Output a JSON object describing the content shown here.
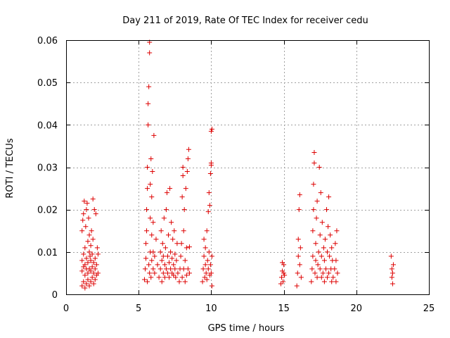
{
  "chart_data": {
    "type": "scatter",
    "title": "Day 211 of 2019, Rate Of TEC Index for receiver cedu",
    "xlabel": "GPS time / hours",
    "ylabel": "ROTI / TECUs",
    "xlim": [
      0,
      25
    ],
    "ylim": [
      0,
      0.06
    ],
    "xticks": [
      0,
      5,
      10,
      15,
      20,
      25
    ],
    "xtick_labels": [
      "0",
      "5",
      "10",
      "15",
      "20",
      "25"
    ],
    "yticks": [
      0,
      0.01,
      0.02,
      0.03,
      0.04,
      0.05,
      0.06
    ],
    "ytick_labels": [
      "0",
      "0.01",
      "0.02",
      "0.03",
      "0.04",
      "0.05",
      "0.06"
    ],
    "grid": true,
    "marker": "+",
    "color": "#dd0000",
    "series": [
      {
        "name": "ROTI",
        "points": [
          [
            1.1,
            0.002
          ],
          [
            1.1,
            0.0055
          ],
          [
            1.1,
            0.008
          ],
          [
            1.1,
            0.015
          ],
          [
            1.15,
            0.0175
          ],
          [
            1.2,
            0.003
          ],
          [
            1.2,
            0.0065
          ],
          [
            1.2,
            0.0095
          ],
          [
            1.2,
            0.019
          ],
          [
            1.25,
            0.022
          ],
          [
            1.3,
            0.0015
          ],
          [
            1.3,
            0.0045
          ],
          [
            1.3,
            0.007
          ],
          [
            1.3,
            0.011
          ],
          [
            1.35,
            0.016
          ],
          [
            1.4,
            0.0025
          ],
          [
            1.4,
            0.006
          ],
          [
            1.4,
            0.0085
          ],
          [
            1.4,
            0.02
          ],
          [
            1.45,
            0.0215
          ],
          [
            1.5,
            0.0035
          ],
          [
            1.5,
            0.005
          ],
          [
            1.5,
            0.0075
          ],
          [
            1.5,
            0.0125
          ],
          [
            1.55,
            0.018
          ],
          [
            1.6,
            0.002
          ],
          [
            1.6,
            0.006
          ],
          [
            1.6,
            0.01
          ],
          [
            1.6,
            0.014
          ],
          [
            1.65,
            0.009
          ],
          [
            1.7,
            0.003
          ],
          [
            1.7,
            0.0055
          ],
          [
            1.7,
            0.008
          ],
          [
            1.7,
            0.0115
          ],
          [
            1.75,
            0.015
          ],
          [
            1.8,
            0.004
          ],
          [
            1.8,
            0.0065
          ],
          [
            1.8,
            0.0095
          ],
          [
            1.85,
            0.013
          ],
          [
            1.9,
            0.0025
          ],
          [
            1.9,
            0.005
          ],
          [
            1.9,
            0.0075
          ],
          [
            1.95,
            0.02
          ],
          [
            2.0,
            0.0035
          ],
          [
            2.0,
            0.006
          ],
          [
            2.0,
            0.0085
          ],
          [
            2.05,
            0.019
          ],
          [
            2.1,
            0.0045
          ],
          [
            2.1,
            0.007
          ],
          [
            2.15,
            0.011
          ],
          [
            1.85,
            0.0225
          ],
          [
            2.2,
            0.0095
          ],
          [
            2.2,
            0.005
          ],
          [
            5.4,
            0.0035
          ],
          [
            5.45,
            0.006
          ],
          [
            5.5,
            0.0085
          ],
          [
            5.5,
            0.012
          ],
          [
            5.55,
            0.015
          ],
          [
            5.55,
            0.02
          ],
          [
            5.6,
            0.025
          ],
          [
            5.6,
            0.03
          ],
          [
            5.6,
            0.003
          ],
          [
            5.65,
            0.04
          ],
          [
            5.65,
            0.045
          ],
          [
            5.7,
            0.049
          ],
          [
            5.7,
            0.007
          ],
          [
            5.75,
            0.057
          ],
          [
            5.75,
            0.0595
          ],
          [
            5.75,
            0.005
          ],
          [
            5.8,
            0.01
          ],
          [
            5.8,
            0.018
          ],
          [
            5.8,
            0.026
          ],
          [
            5.85,
            0.032
          ],
          [
            5.85,
            0.004
          ],
          [
            5.9,
            0.008
          ],
          [
            5.9,
            0.014
          ],
          [
            5.9,
            0.023
          ],
          [
            5.95,
            0.029
          ],
          [
            6.0,
            0.006
          ],
          [
            6.0,
            0.01
          ],
          [
            6.0,
            0.017
          ],
          [
            6.05,
            0.0375
          ],
          [
            6.1,
            0.005
          ],
          [
            6.1,
            0.009
          ],
          [
            6.2,
            0.013
          ],
          [
            6.3,
            0.007
          ],
          [
            6.4,
            0.004
          ],
          [
            6.5,
            0.006
          ],
          [
            6.5,
            0.01
          ],
          [
            6.55,
            0.015
          ],
          [
            6.6,
            0.003
          ],
          [
            6.6,
            0.008
          ],
          [
            6.65,
            0.012
          ],
          [
            6.7,
            0.005
          ],
          [
            6.7,
            0.009
          ],
          [
            6.75,
            0.018
          ],
          [
            6.8,
            0.004
          ],
          [
            6.8,
            0.007
          ],
          [
            6.85,
            0.011
          ],
          [
            6.9,
            0.006
          ],
          [
            6.9,
            0.02
          ],
          [
            6.95,
            0.024
          ],
          [
            7.0,
            0.005
          ],
          [
            7.0,
            0.009
          ],
          [
            7.05,
            0.014
          ],
          [
            7.1,
            0.004
          ],
          [
            7.1,
            0.0075
          ],
          [
            7.15,
            0.025
          ],
          [
            7.2,
            0.006
          ],
          [
            7.2,
            0.01
          ],
          [
            7.25,
            0.017
          ],
          [
            7.3,
            0.005
          ],
          [
            7.3,
            0.0085
          ],
          [
            7.35,
            0.013
          ],
          [
            7.4,
            0.0045
          ],
          [
            7.4,
            0.007
          ],
          [
            7.45,
            0.015
          ],
          [
            7.5,
            0.006
          ],
          [
            7.5,
            0.0095
          ],
          [
            7.55,
            0.004
          ],
          [
            7.6,
            0.008
          ],
          [
            7.65,
            0.012
          ],
          [
            7.7,
            0.005
          ],
          [
            7.8,
            0.003
          ],
          [
            7.85,
            0.006
          ],
          [
            7.9,
            0.009
          ],
          [
            7.95,
            0.012
          ],
          [
            8.0,
            0.004
          ],
          [
            8.0,
            0.023
          ],
          [
            8.05,
            0.028
          ],
          [
            8.05,
            0.03
          ],
          [
            8.1,
            0.006
          ],
          [
            8.1,
            0.015
          ],
          [
            8.15,
            0.02
          ],
          [
            8.2,
            0.003
          ],
          [
            8.2,
            0.008
          ],
          [
            8.25,
            0.025
          ],
          [
            8.3,
            0.0045
          ],
          [
            8.3,
            0.011
          ],
          [
            8.35,
            0.029
          ],
          [
            8.4,
            0.006
          ],
          [
            8.4,
            0.032
          ],
          [
            8.45,
            0.0342
          ],
          [
            8.5,
            0.005
          ],
          [
            8.5,
            0.0112
          ],
          [
            9.4,
            0.003
          ],
          [
            9.45,
            0.006
          ],
          [
            9.5,
            0.009
          ],
          [
            9.5,
            0.013
          ],
          [
            9.55,
            0.004
          ],
          [
            9.6,
            0.007
          ],
          [
            9.6,
            0.011
          ],
          [
            9.65,
            0.005
          ],
          [
            9.7,
            0.015
          ],
          [
            9.7,
            0.0035
          ],
          [
            9.75,
            0.008
          ],
          [
            9.8,
            0.0195
          ],
          [
            9.8,
            0.006
          ],
          [
            9.85,
            0.01
          ],
          [
            9.85,
            0.024
          ],
          [
            9.9,
            0.0045
          ],
          [
            9.9,
            0.021
          ],
          [
            9.95,
            0.007
          ],
          [
            9.95,
            0.0285
          ],
          [
            10.0,
            0.005
          ],
          [
            10.0,
            0.0305
          ],
          [
            10.0,
            0.031
          ],
          [
            10.0,
            0.0385
          ],
          [
            10.05,
            0.039
          ],
          [
            10.05,
            0.009
          ],
          [
            10.05,
            0.002
          ],
          [
            14.8,
            0.0025
          ],
          [
            14.85,
            0.004
          ],
          [
            14.9,
            0.0055
          ],
          [
            14.9,
            0.0075
          ],
          [
            14.95,
            0.003
          ],
          [
            15.0,
            0.005
          ],
          [
            15.0,
            0.007
          ],
          [
            15.05,
            0.0045
          ],
          [
            15.9,
            0.002
          ],
          [
            15.95,
            0.005
          ],
          [
            16.0,
            0.009
          ],
          [
            16.0,
            0.013
          ],
          [
            16.05,
            0.02
          ],
          [
            16.1,
            0.0235
          ],
          [
            16.1,
            0.007
          ],
          [
            16.15,
            0.011
          ],
          [
            16.2,
            0.004
          ],
          [
            16.9,
            0.003
          ],
          [
            16.95,
            0.006
          ],
          [
            17.0,
            0.009
          ],
          [
            17.0,
            0.015
          ],
          [
            17.05,
            0.02
          ],
          [
            17.05,
            0.026
          ],
          [
            17.1,
            0.031
          ],
          [
            17.1,
            0.0335
          ],
          [
            17.15,
            0.005
          ],
          [
            17.2,
            0.008
          ],
          [
            17.2,
            0.012
          ],
          [
            17.25,
            0.018
          ],
          [
            17.3,
            0.022
          ],
          [
            17.3,
            0.004
          ],
          [
            17.35,
            0.007
          ],
          [
            17.4,
            0.01
          ],
          [
            17.45,
            0.03
          ],
          [
            17.5,
            0.006
          ],
          [
            17.5,
            0.014
          ],
          [
            17.55,
            0.024
          ],
          [
            17.6,
            0.004
          ],
          [
            17.6,
            0.009
          ],
          [
            17.65,
            0.017
          ],
          [
            17.7,
            0.005
          ],
          [
            17.75,
            0.011
          ],
          [
            17.8,
            0.003
          ],
          [
            17.8,
            0.008
          ],
          [
            17.85,
            0.013
          ],
          [
            17.9,
            0.006
          ],
          [
            17.95,
            0.02
          ],
          [
            18.0,
            0.004
          ],
          [
            18.0,
            0.01
          ],
          [
            18.05,
            0.016
          ],
          [
            18.1,
            0.005
          ],
          [
            18.1,
            0.023
          ],
          [
            18.15,
            0.009
          ],
          [
            18.2,
            0.014
          ],
          [
            18.25,
            0.006
          ],
          [
            18.3,
            0.003
          ],
          [
            18.3,
            0.011
          ],
          [
            18.35,
            0.008
          ],
          [
            18.4,
            0.004
          ],
          [
            18.5,
            0.006
          ],
          [
            18.55,
            0.012
          ],
          [
            18.6,
            0.003
          ],
          [
            18.6,
            0.008
          ],
          [
            18.65,
            0.015
          ],
          [
            18.7,
            0.005
          ],
          [
            22.4,
            0.009
          ],
          [
            22.45,
            0.006
          ],
          [
            22.45,
            0.004
          ],
          [
            22.5,
            0.0025
          ],
          [
            22.5,
            0.005
          ],
          [
            22.55,
            0.007
          ]
        ]
      }
    ]
  }
}
